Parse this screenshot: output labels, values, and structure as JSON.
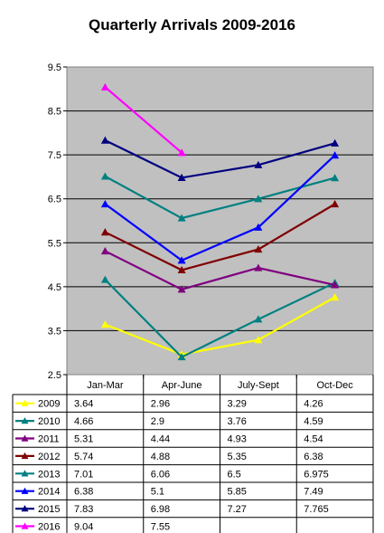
{
  "chart_data": {
    "type": "line",
    "title": "Quarterly Arrivals 2009-2016",
    "categories": [
      "Jan-Mar",
      "Apr-June",
      "July-Sept",
      "Oct-Dec"
    ],
    "ylim": [
      2.5,
      9.5
    ],
    "yticks": [
      "9.5",
      "8.5",
      "7.5",
      "6.5",
      "5.5",
      "4.5",
      "3.5",
      "2.5"
    ],
    "ytick_values": [
      9.5,
      8.5,
      7.5,
      6.5,
      5.5,
      4.5,
      3.5,
      2.5
    ],
    "grid": true,
    "plot_background": "#c0c0c0",
    "legend": "data-table",
    "series": [
      {
        "name": "2009",
        "color": "#ffff00",
        "values": [
          3.64,
          2.96,
          3.29,
          4.26
        ],
        "labels": [
          "3.64",
          "2.96",
          "3.29",
          "4.26"
        ]
      },
      {
        "name": "2010",
        "color": "#008080",
        "values": [
          4.66,
          2.9,
          3.76,
          4.59
        ],
        "labels": [
          "4.66",
          "2.9",
          "3.76",
          "4.59"
        ]
      },
      {
        "name": "2011",
        "color": "#800080",
        "values": [
          5.31,
          4.44,
          4.93,
          4.54
        ],
        "labels": [
          "5.31",
          "4.44",
          "4.93",
          "4.54"
        ]
      },
      {
        "name": "2012",
        "color": "#800000",
        "values": [
          5.74,
          4.88,
          5.35,
          6.38
        ],
        "labels": [
          "5.74",
          "4.88",
          "5.35",
          "6.38"
        ]
      },
      {
        "name": "2013",
        "color": "#008080",
        "values": [
          7.01,
          6.06,
          6.5,
          6.975
        ],
        "labels": [
          "7.01",
          "6.06",
          "6.5",
          "6.975"
        ]
      },
      {
        "name": "2014",
        "color": "#0000ff",
        "values": [
          6.38,
          5.1,
          5.85,
          7.49
        ],
        "labels": [
          "6.38",
          "5.1",
          "5.85",
          "7.49"
        ]
      },
      {
        "name": "2015",
        "color": "#000080",
        "values": [
          7.83,
          6.98,
          7.27,
          7.765
        ],
        "labels": [
          "7.83",
          "6.98",
          "7.27",
          "7.765"
        ]
      },
      {
        "name": "2016",
        "color": "#ff00ff",
        "values": [
          9.04,
          7.55,
          null,
          null
        ],
        "labels": [
          "9.04",
          "7.55",
          "",
          ""
        ]
      }
    ]
  }
}
